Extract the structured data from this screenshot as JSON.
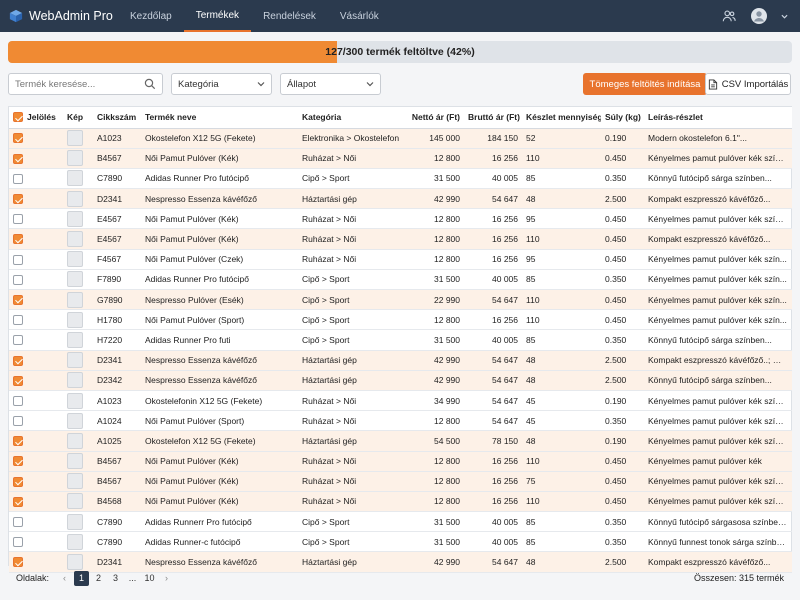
{
  "app": {
    "title": "WebAdmin Pro"
  },
  "nav": [
    {
      "label": "Kezdőlap",
      "active": false
    },
    {
      "label": "Termékek",
      "active": true
    },
    {
      "label": "Rendelések",
      "active": false
    },
    {
      "label": "Vásárlók",
      "active": false
    }
  ],
  "topbar": {
    "users_icon": "users-icon",
    "avatar_icon": "avatar-icon"
  },
  "progress": {
    "text": "127/300 termék feltöltve (42%)",
    "fraction": 0.42,
    "color": "#f08a33"
  },
  "toolbar": {
    "search_placeholder": "Termék keresése...",
    "category_value": "Kategória",
    "status_value": "Állapot",
    "bulk_upload_label": "Tömeges feltöltés indítása",
    "csv_import_label": "CSV Importálás"
  },
  "table": {
    "headers": {
      "select": "Jelölés",
      "image": "Kép",
      "sku": "Cikkszám",
      "name": "Termék neve",
      "category": "Kategória",
      "net": "Nettó ár (Ft)",
      "gross": "Bruttó ár (Ft)",
      "stock": "Készlet mennyiség",
      "weight": "Súly (kg)",
      "desc": "Leírás-részlet"
    },
    "rows": [
      {
        "checked": true,
        "sku": "A1023",
        "name": "Okostelefon X12 5G (Fekete)",
        "category": "Elektronika > Okostelefon",
        "net": "145 000",
        "gross": "184 150",
        "stock": "52",
        "weight": "0.190",
        "desc": "Modern okostelefon 6.1\"..."
      },
      {
        "checked": true,
        "sku": "B4567",
        "name": "Női Pamut Pulóver (Kék)",
        "category": "Ruházat > Női",
        "net": "12 800",
        "gross": "16 256",
        "stock": "110",
        "weight": "0.450",
        "desc": "Kényelmes pamut pulóver kék színben..."
      },
      {
        "checked": false,
        "sku": "C7890",
        "name": "Adidas Runner Pro futócipő",
        "category": "Cipő > Sport",
        "net": "31 500",
        "gross": "40 005",
        "stock": "85",
        "weight": "0.350",
        "desc": "Könnyű futócipő sárga színben..."
      },
      {
        "checked": true,
        "sku": "D2341",
        "name": "Nespresso Essenza kávéfőző",
        "category": "Háztartási gép",
        "net": "42 990",
        "gross": "54 647",
        "stock": "48",
        "weight": "2.500",
        "desc": "Kompakt eszpresszó kávéfőző..."
      },
      {
        "checked": false,
        "sku": "E4567",
        "name": "Női Pamut Pulóver (Kék)",
        "category": "Ruházat > Női",
        "net": "12 800",
        "gross": "16 256",
        "stock": "95",
        "weight": "0.450",
        "desc": "Kényelmes pamut pulóver kék színbe..."
      },
      {
        "checked": true,
        "sku": "E4567",
        "name": "Női Pamut Pulóver (Kék)",
        "category": "Ruházat > Női",
        "net": "12 800",
        "gross": "16 256",
        "stock": "110",
        "weight": "0.450",
        "desc": "Kompakt eszpresszó kávéfőző..."
      },
      {
        "checked": false,
        "sku": "F4567",
        "name": "Női Pamut Pulóver (Czek)",
        "category": "Ruházat > Női",
        "net": "12 800",
        "gross": "16 256",
        "stock": "95",
        "weight": "0.450",
        "desc": "Kényelmes pamut pulóver kék szín..."
      },
      {
        "checked": false,
        "sku": "F7890",
        "name": "Adidas Runner Pro futócipő",
        "category": "Cipő > Sport",
        "net": "31 500",
        "gross": "40 005",
        "stock": "85",
        "weight": "0.350",
        "desc": "Kényelmes pamut pulóver kék szín..."
      },
      {
        "checked": true,
        "sku": "G7890",
        "name": "Nespresso Pulóver (Esék)",
        "category": "Cipő > Sport",
        "net": "22 990",
        "gross": "54 647",
        "stock": "110",
        "weight": "0.450",
        "desc": "Kényelmes pamut pulóver kék szín..."
      },
      {
        "checked": false,
        "sku": "H1780",
        "name": "Női Pamut Pulóver (Sport)",
        "category": "Cipő > Sport",
        "net": "12 800",
        "gross": "16 256",
        "stock": "110",
        "weight": "0.450",
        "desc": "Kényelmes pamut pulóver kék szín..."
      },
      {
        "checked": false,
        "sku": "H7220",
        "name": "Adidas Runner Pro futi",
        "category": "Cipő > Sport",
        "net": "31 500",
        "gross": "40 005",
        "stock": "85",
        "weight": "0.350",
        "desc": "Könnyű futócipő sárga színben..."
      },
      {
        "checked": true,
        "sku": "D2341",
        "name": "Nespresso Essenza kávéfőző",
        "category": "Háztartási gép",
        "net": "42 990",
        "gross": "54 647",
        "stock": "48",
        "weight": "2.500",
        "desc": "Kompakt eszpresszó kávéfőző..; Mo..."
      },
      {
        "checked": true,
        "sku": "D2342",
        "name": "Nespresso Essenza kávéfőző",
        "category": "Háztartási gép",
        "net": "42 990",
        "gross": "54 647",
        "stock": "48",
        "weight": "2.500",
        "desc": "Könnyű futócipő sárga színben..."
      },
      {
        "checked": false,
        "sku": "A1023",
        "name": "Okostelefonin X12 5G (Fekete)",
        "category": "Ruházat > Női",
        "net": "34 990",
        "gross": "54 647",
        "stock": "45",
        "weight": "0.190",
        "desc": "Kényelmes pamut pulóver kék színben..."
      },
      {
        "checked": false,
        "sku": "A1024",
        "name": "Női Pamut Pulóver (Sport)",
        "category": "Ruházat > Női",
        "net": "12 800",
        "gross": "54 647",
        "stock": "45",
        "weight": "0.350",
        "desc": "Kényelmes pamut pulóver kék színben..."
      },
      {
        "checked": true,
        "sku": "A1025",
        "name": "Okostelefon X12 5G (Fekete)",
        "category": "Háztartási gép",
        "net": "54 500",
        "gross": "78 150",
        "stock": "48",
        "weight": "0.190",
        "desc": "Kényelmes pamut pulóver kék színben..."
      },
      {
        "checked": true,
        "sku": "B4567",
        "name": "Női Pamut Pulóver (Kék)",
        "category": "Ruházat > Női",
        "net": "12 800",
        "gross": "16 256",
        "stock": "110",
        "weight": "0.450",
        "desc": "Kényelmes pamut pulóver kék"
      },
      {
        "checked": true,
        "sku": "B4567",
        "name": "Női Pamut Pulóver (Kék)",
        "category": "Ruházat > Női",
        "net": "12 800",
        "gross": "16 256",
        "stock": "75",
        "weight": "0.450",
        "desc": "Kényelmes pamut pulóver kék színben..."
      },
      {
        "checked": true,
        "sku": "B4568",
        "name": "Női Pamut Pulóver (Kék)",
        "category": "Ruházat > Női",
        "net": "12 800",
        "gross": "16 256",
        "stock": "110",
        "weight": "0.450",
        "desc": "Kényelmes pamut pulóver kék színben..."
      },
      {
        "checked": false,
        "sku": "C7890",
        "name": "Adidas Runnerr Pro futócipő",
        "category": "Cipő > Sport",
        "net": "31 500",
        "gross": "40 005",
        "stock": "85",
        "weight": "0.350",
        "desc": "Könnyű futócipő sárgasosa színben..."
      },
      {
        "checked": false,
        "sku": "C7890",
        "name": "Adidas Runner-c futócipő",
        "category": "Cipő > Sport",
        "net": "31 500",
        "gross": "40 005",
        "stock": "85",
        "weight": "0.350",
        "desc": "Könnyű funnest tonok sárga színben..."
      },
      {
        "checked": true,
        "sku": "D2341",
        "name": "Nespresso Essenza kávéfőző",
        "category": "Háztartási gép",
        "net": "42 990",
        "gross": "54 647",
        "stock": "48",
        "weight": "2.500",
        "desc": "Kompakt eszpresszó kávéfőző..."
      }
    ]
  },
  "footer": {
    "pages_label": "Oldalak:",
    "prev": "‹",
    "pages": [
      "1",
      "2",
      "3",
      "...",
      "10"
    ],
    "next": "›",
    "total": "Összesen: 315 termék"
  }
}
